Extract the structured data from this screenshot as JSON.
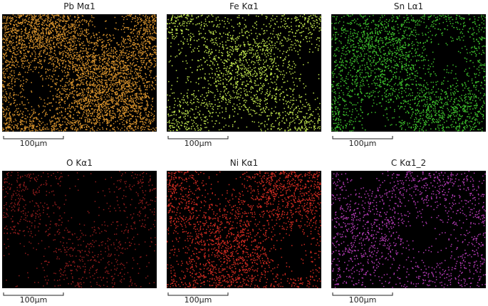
{
  "panels": [
    {
      "title": "Pb Mα1",
      "scale_label": "100µm",
      "color": "#d38f2c"
    },
    {
      "title": "Fe Kα1",
      "scale_label": "100µm",
      "color": "#bde24c"
    },
    {
      "title": "Sn Lα1",
      "scale_label": "100µm",
      "color": "#3cbd2b"
    },
    {
      "title": "O Kα1",
      "scale_label": "100µm",
      "color": "#8e1c1c"
    },
    {
      "title": "Ni Kα1",
      "scale_label": "100µm",
      "color": "#cc2a20"
    },
    {
      "title": "C Kα1_2",
      "scale_label": "100µm",
      "color": "#b23ab4"
    }
  ]
}
